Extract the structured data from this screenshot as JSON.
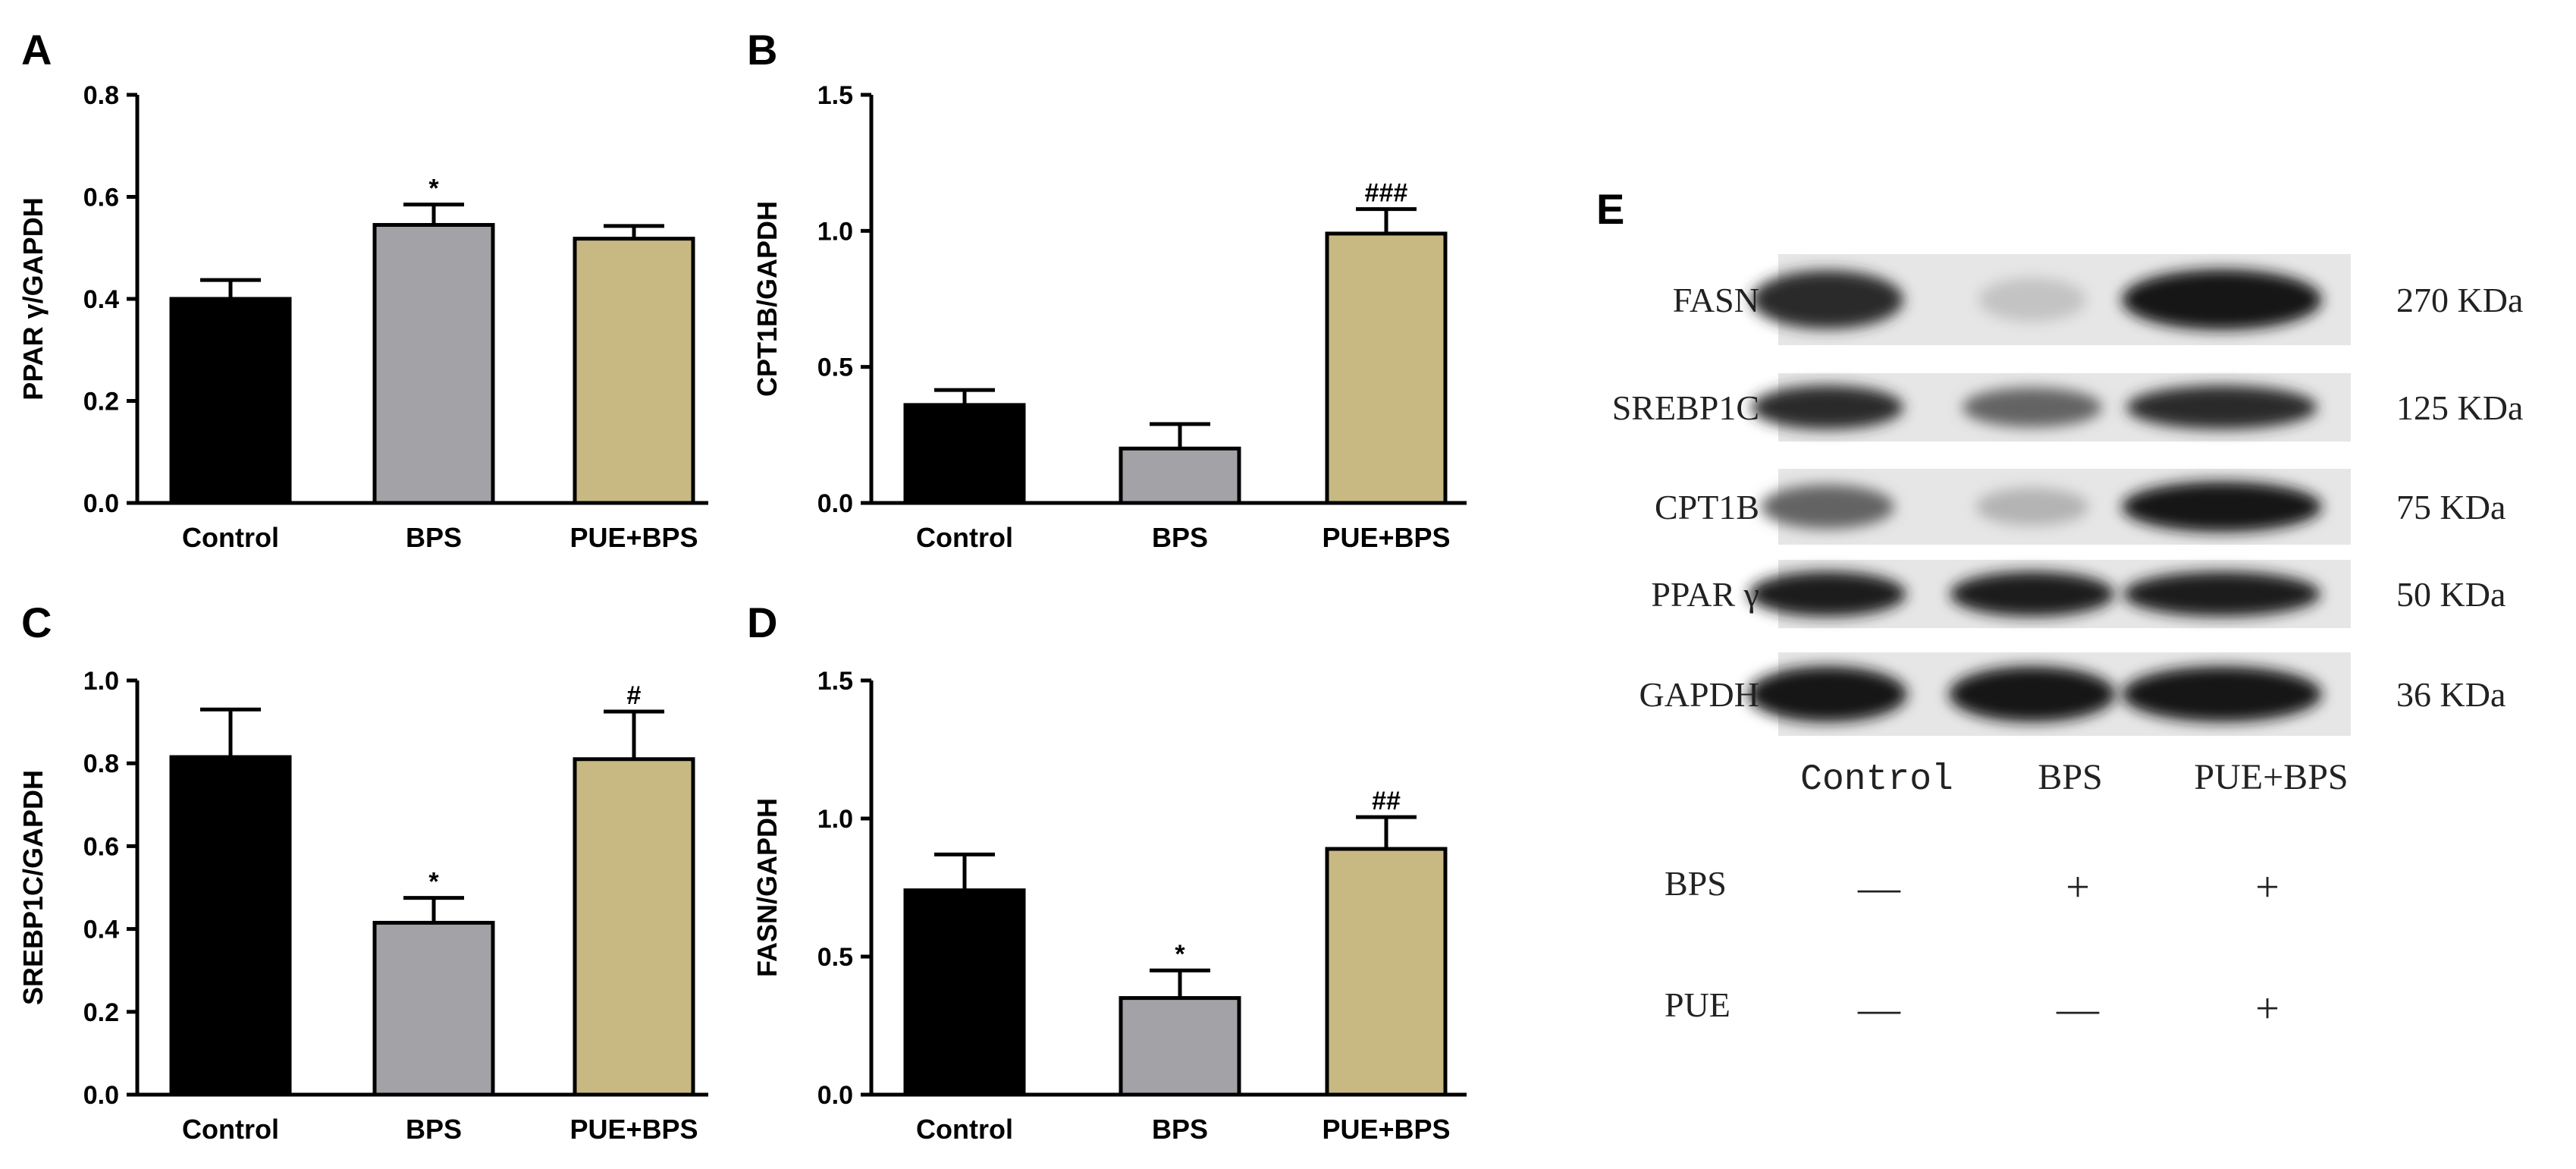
{
  "chart_data": [
    {
      "type": "bar",
      "panel": "A",
      "ylabel": "PPAR γ/GAPDH",
      "categories": [
        "Control",
        "BPS",
        "PUE+BPS"
      ],
      "values": [
        0.4,
        0.545,
        0.518
      ],
      "errors": [
        0.037,
        0.04,
        0.025
      ],
      "annotations": [
        "",
        "*",
        ""
      ],
      "ylim": [
        0,
        0.8
      ],
      "yticks": [
        "0.0",
        "0.2",
        "0.4",
        "0.6",
        "0.8"
      ]
    },
    {
      "type": "bar",
      "panel": "B",
      "ylabel": "CPT1B/GAPDH",
      "categories": [
        "Control",
        "BPS",
        "PUE+BPS"
      ],
      "values": [
        0.36,
        0.2,
        0.99
      ],
      "errors": [
        0.055,
        0.09,
        0.09
      ],
      "annotations": [
        "",
        "",
        "###"
      ],
      "ylim": [
        0,
        1.5
      ],
      "yticks": [
        "0.0",
        "0.5",
        "1.0",
        "1.5"
      ]
    },
    {
      "type": "bar",
      "panel": "C",
      "ylabel": "SREBP1C/GAPDH",
      "categories": [
        "Control",
        "BPS",
        "PUE+BPS"
      ],
      "values": [
        0.815,
        0.415,
        0.81
      ],
      "errors": [
        0.115,
        0.06,
        0.115
      ],
      "annotations": [
        "",
        "*",
        "#"
      ],
      "ylim": [
        0,
        1.0
      ],
      "yticks": [
        "0.0",
        "0.2",
        "0.4",
        "0.6",
        "0.8",
        "1.0"
      ]
    },
    {
      "type": "bar",
      "panel": "D",
      "ylabel": "FASN/GAPDH",
      "categories": [
        "Control",
        "BPS",
        "PUE+BPS"
      ],
      "values": [
        0.74,
        0.35,
        0.89
      ],
      "errors": [
        0.13,
        0.1,
        0.115
      ],
      "annotations": [
        "",
        "*",
        "##"
      ],
      "ylim": [
        0,
        1.5
      ],
      "yticks": [
        "0.0",
        "0.5",
        "1.0",
        "1.5"
      ]
    }
  ],
  "bar_colors": [
    "#000000",
    "#a3a3a7",
    "#c8b983"
  ],
  "western_blot": {
    "panel": "E",
    "proteins": [
      {
        "name": "FASN",
        "size": "270 KDa",
        "bands": [
          0.85,
          0.18,
          0.95
        ]
      },
      {
        "name": "SREBP1C",
        "size": "125 KDa",
        "bands": [
          0.85,
          0.6,
          0.85
        ]
      },
      {
        "name": "CPT1B",
        "size": "75 KDa",
        "bands": [
          0.6,
          0.25,
          0.95
        ]
      },
      {
        "name": "PPAR γ",
        "size": "50 KDa",
        "bands": [
          0.92,
          0.92,
          0.92
        ]
      },
      {
        "name": "GAPDH",
        "size": "36 KDa",
        "bands": [
          0.95,
          0.95,
          0.95
        ]
      }
    ],
    "lanes": [
      "Control",
      "BPS",
      "PUE+BPS"
    ],
    "treatments": [
      {
        "name": "BPS",
        "marks": [
          "—",
          "+",
          "+"
        ]
      },
      {
        "name": "PUE",
        "marks": [
          "—",
          "—",
          "+"
        ]
      }
    ]
  }
}
